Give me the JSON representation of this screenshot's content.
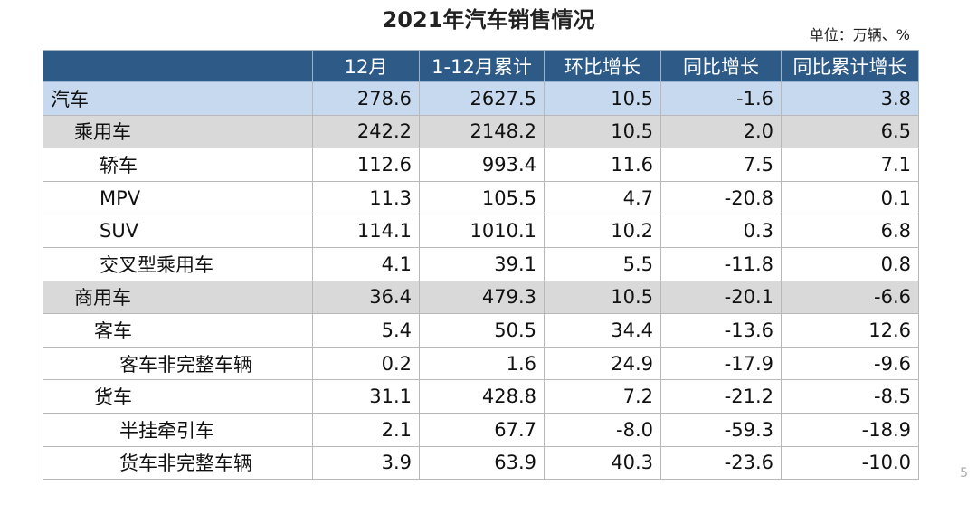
{
  "header": {
    "title": "2021年汽车销售情况",
    "unit": "单位：万辆、%"
  },
  "table": {
    "columns": [
      "",
      "12月",
      "1-12月累计",
      "环比增长",
      "同比增长",
      "同比累计增长"
    ],
    "rows": [
      [
        "汽车",
        "278.6",
        "2627.5",
        "10.5",
        "-1.6",
        "3.8"
      ],
      [
        "乘用车",
        "242.2",
        "2148.2",
        "10.5",
        "2.0",
        "6.5"
      ],
      [
        "轿车",
        "112.6",
        "993.4",
        "11.6",
        "7.5",
        "7.1"
      ],
      [
        "MPV",
        "11.3",
        "105.5",
        "4.7",
        "-20.8",
        "0.1"
      ],
      [
        "SUV",
        "114.1",
        "1010.1",
        "10.2",
        "0.3",
        "6.8"
      ],
      [
        "交叉型乘用车",
        "4.1",
        "39.1",
        "5.5",
        "-11.8",
        "0.8"
      ],
      [
        "商用车",
        "36.4",
        "479.3",
        "10.5",
        "-20.1",
        "-6.6"
      ],
      [
        "客车",
        "5.4",
        "50.5",
        "34.4",
        "-13.6",
        "12.6"
      ],
      [
        "客车非完整车辆",
        "0.2",
        "1.6",
        "24.9",
        "-17.9",
        "-9.6"
      ],
      [
        "货车",
        "31.1",
        "428.8",
        "7.2",
        "-21.2",
        "-8.5"
      ],
      [
        "半挂牵引车",
        "2.1",
        "67.7",
        "-8.0",
        "-59.3",
        "-18.9"
      ],
      [
        "货车非完整车辆",
        "3.9",
        "63.9",
        "40.3",
        "-23.6",
        "-10.0"
      ]
    ]
  },
  "footer": {
    "page": "5"
  }
}
